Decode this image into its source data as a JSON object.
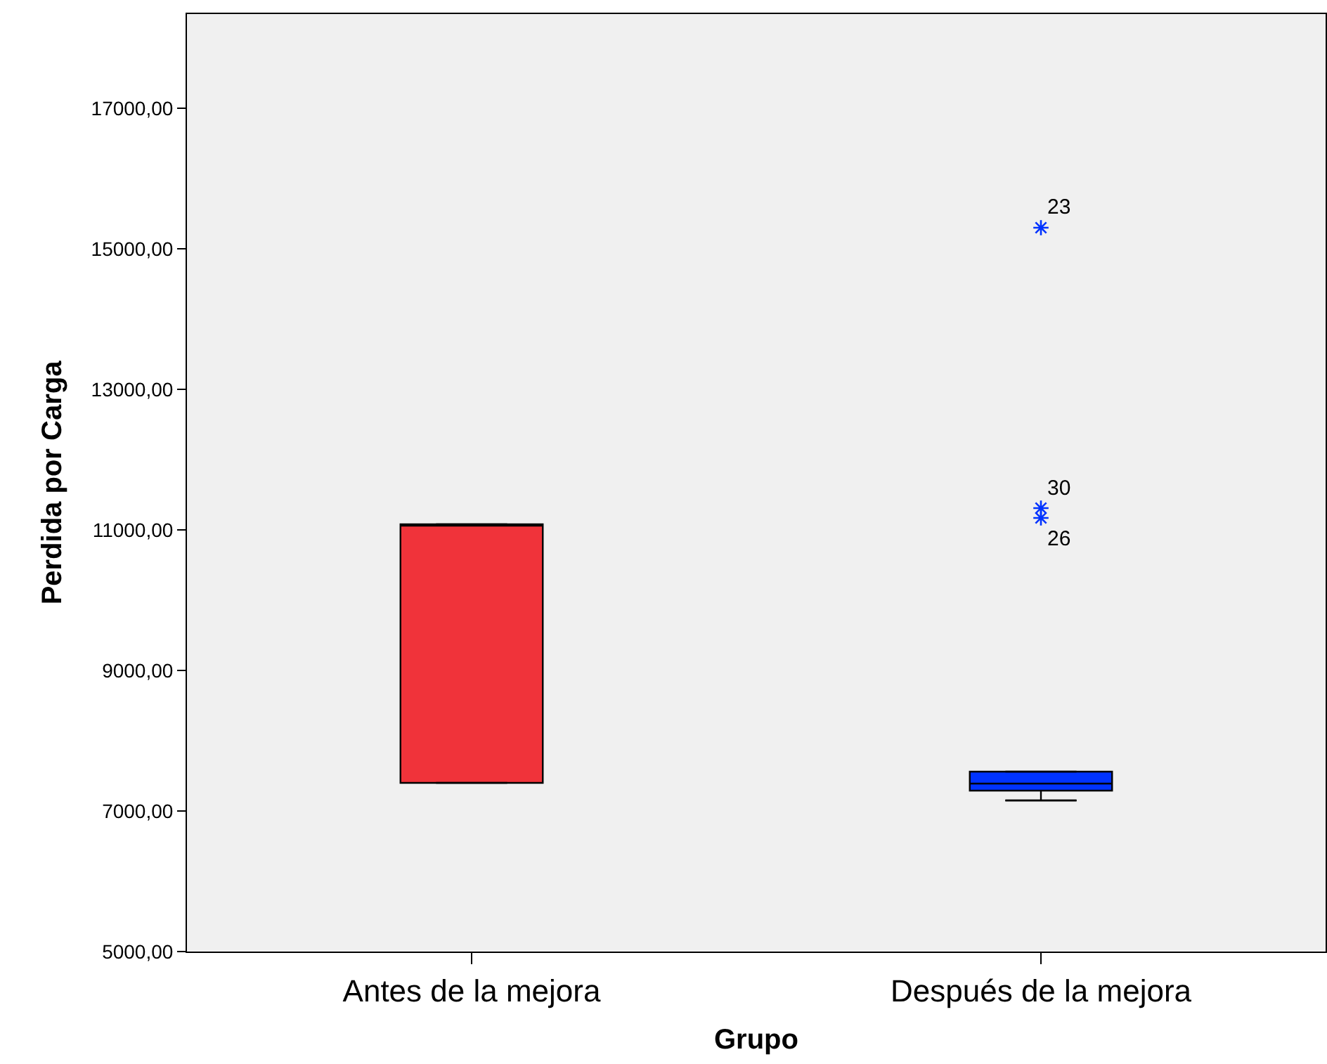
{
  "chart_data": {
    "type": "box",
    "xlabel": "Grupo",
    "ylabel": "Perdida por Carga",
    "categories": [
      "Antes de la mejora",
      "Después de la mejora"
    ],
    "colors": [
      "#f0333a",
      "#0033ff"
    ],
    "boxes": [
      {
        "low": 7400,
        "q1": 7400,
        "median": 11080,
        "q3": 11080,
        "high": 11080
      },
      {
        "low": 7150,
        "q1": 7290,
        "median": 7390,
        "q3": 7560,
        "high": 7560,
        "outliers": [
          15300,
          11310,
          11170
        ]
      }
    ],
    "marker": "star",
    "ylim": [
      5000,
      18340
    ],
    "yticks": [
      {
        "value": 5000,
        "label": "5000,00"
      },
      {
        "value": 7000,
        "label": "7000,00"
      },
      {
        "value": 9000,
        "label": "9000,00"
      },
      {
        "value": 11000,
        "label": "11000,00"
      },
      {
        "value": 13000,
        "label": "13000,00"
      },
      {
        "value": 15000,
        "label": "15000,00"
      },
      {
        "value": 17000,
        "label": "17000,00"
      }
    ],
    "annotations": [
      "23",
      "30",
      "26"
    ],
    "grid": false
  }
}
